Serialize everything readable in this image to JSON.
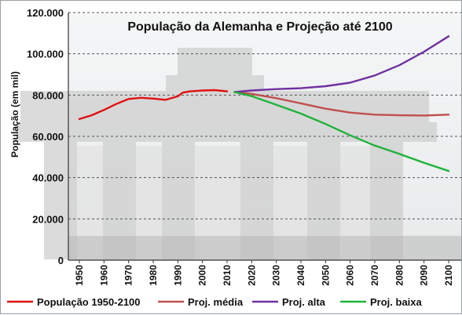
{
  "chart_data": {
    "type": "line",
    "title": "População da Alemanha e Projeção até 2100",
    "xlabel": "",
    "ylabel": "População (em mil)",
    "xlim": [
      1950,
      2100
    ],
    "ylim": [
      0,
      120000
    ],
    "x_ticks": [
      "1950",
      "1960",
      "1970",
      "1980",
      "1990",
      "2000",
      "2010",
      "2020",
      "2030",
      "2040",
      "2050",
      "2060",
      "2070",
      "2080",
      "2090",
      "2100"
    ],
    "y_ticks": [
      "0",
      "20.000",
      "40.000",
      "60.000",
      "80.000",
      "100.000",
      "120.000"
    ],
    "grid": true,
    "legend_position": "bottom",
    "series": [
      {
        "name": "População 1950-2100",
        "color": "#e01010",
        "points": [
          [
            1950,
            68400
          ],
          [
            1955,
            70200
          ],
          [
            1960,
            72800
          ],
          [
            1965,
            75700
          ],
          [
            1970,
            78100
          ],
          [
            1975,
            78700
          ],
          [
            1980,
            78300
          ],
          [
            1985,
            77700
          ],
          [
            1990,
            79400
          ],
          [
            1992,
            81200
          ],
          [
            1995,
            81800
          ],
          [
            2000,
            82200
          ],
          [
            2005,
            82400
          ],
          [
            2010,
            81800
          ]
        ]
      },
      {
        "name": "Proj. média",
        "color": "#c0504d",
        "points": [
          [
            2013,
            81500
          ],
          [
            2020,
            80600
          ],
          [
            2030,
            78500
          ],
          [
            2040,
            76000
          ],
          [
            2050,
            73400
          ],
          [
            2060,
            71500
          ],
          [
            2070,
            70500
          ],
          [
            2080,
            70200
          ],
          [
            2090,
            70100
          ],
          [
            2100,
            70500
          ]
        ]
      },
      {
        "name": "Proj. alta",
        "color": "#7030a0",
        "points": [
          [
            2013,
            81500
          ],
          [
            2020,
            82200
          ],
          [
            2030,
            82900
          ],
          [
            2040,
            83300
          ],
          [
            2050,
            84300
          ],
          [
            2060,
            86000
          ],
          [
            2070,
            89500
          ],
          [
            2080,
            94500
          ],
          [
            2090,
            101000
          ],
          [
            2100,
            108500
          ]
        ]
      },
      {
        "name": "Proj. baixa",
        "color": "#1fb33a",
        "points": [
          [
            2013,
            81500
          ],
          [
            2020,
            79500
          ],
          [
            2030,
            75300
          ],
          [
            2040,
            71000
          ],
          [
            2050,
            66000
          ],
          [
            2060,
            60500
          ],
          [
            2070,
            55500
          ],
          [
            2080,
            51500
          ],
          [
            2090,
            47200
          ],
          [
            2100,
            43200
          ]
        ]
      }
    ]
  }
}
